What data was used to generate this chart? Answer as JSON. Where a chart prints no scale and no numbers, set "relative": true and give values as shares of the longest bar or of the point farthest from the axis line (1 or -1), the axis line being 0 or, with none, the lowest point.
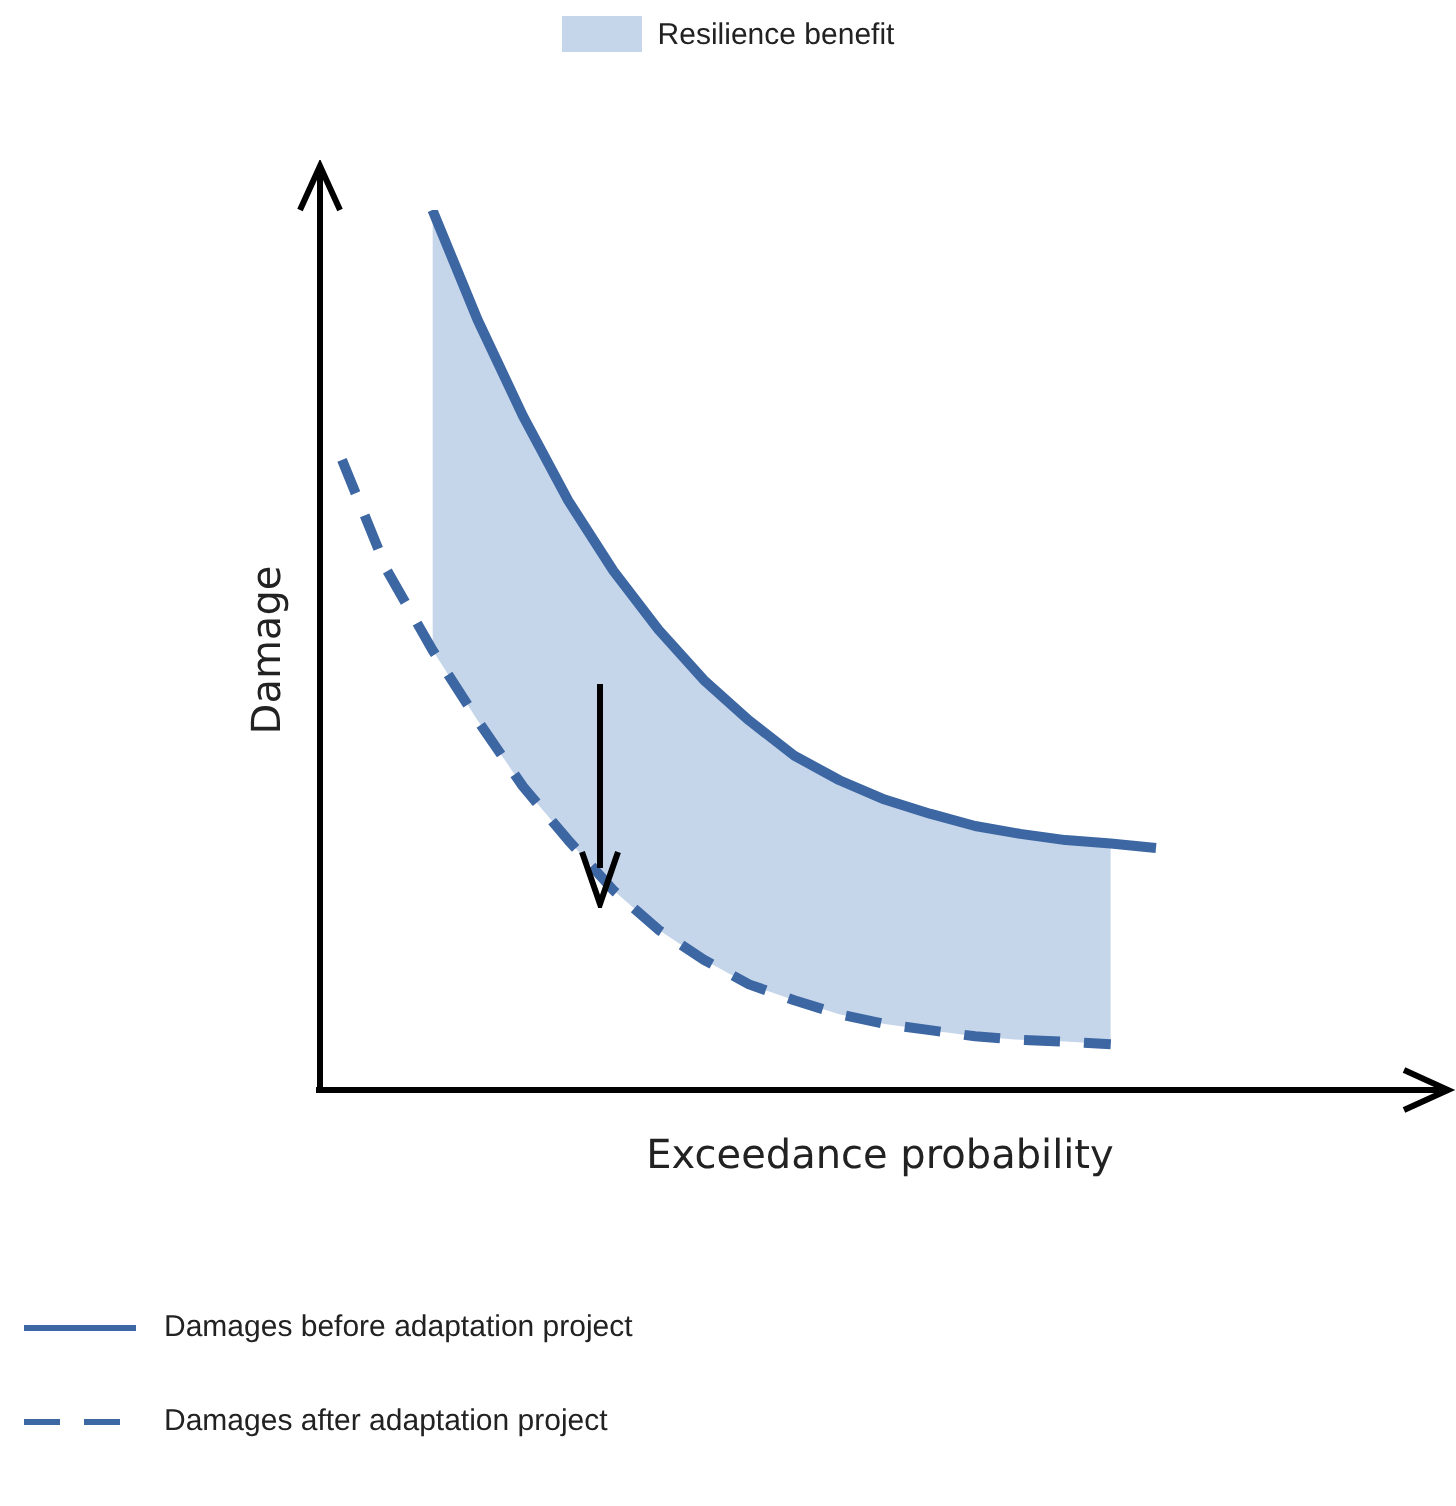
{
  "chart_data": {
    "type": "line",
    "relative": true,
    "xlabel": "Exceedance probability",
    "ylabel": "Damage",
    "legend": "bottom",
    "marker": "none",
    "categories": [
      null,
      null,
      null,
      null,
      null,
      null,
      null,
      null,
      null,
      null,
      null,
      null,
      null,
      null,
      null,
      null,
      null,
      null,
      null
    ],
    "series": [
      {
        "name": "Damages before adaptation project",
        "color": "#3d67a3",
        "line_style": "solid",
        "values": [
          null,
          null,
          1.0,
          0.875,
          0.766,
          0.67,
          0.59,
          0.523,
          0.466,
          0.42,
          0.38,
          0.352,
          0.33,
          0.314,
          0.3,
          0.291,
          0.284,
          0.28,
          0.275
        ]
      },
      {
        "name": "Resilience benefit",
        "type": "area",
        "color": "#c5d5ea",
        "values": [
          null,
          null,
          1.0,
          0.875,
          0.766,
          0.67,
          0.59,
          0.523,
          0.466,
          0.42,
          0.38,
          0.352,
          0.33,
          0.314,
          0.3,
          0.291,
          0.284,
          0.28,
          null
        ]
      },
      {
        "name": "Damages after adaptation project",
        "color": "#3d67a3",
        "line_style": "dashed",
        "values": [
          0.716,
          0.59,
          0.5,
          0.42,
          0.345,
          0.284,
          0.227,
          0.182,
          0.148,
          0.12,
          0.102,
          0.086,
          0.075,
          0.068,
          0.061,
          0.057,
          0.055,
          0.052,
          null
        ]
      }
    ]
  }
}
